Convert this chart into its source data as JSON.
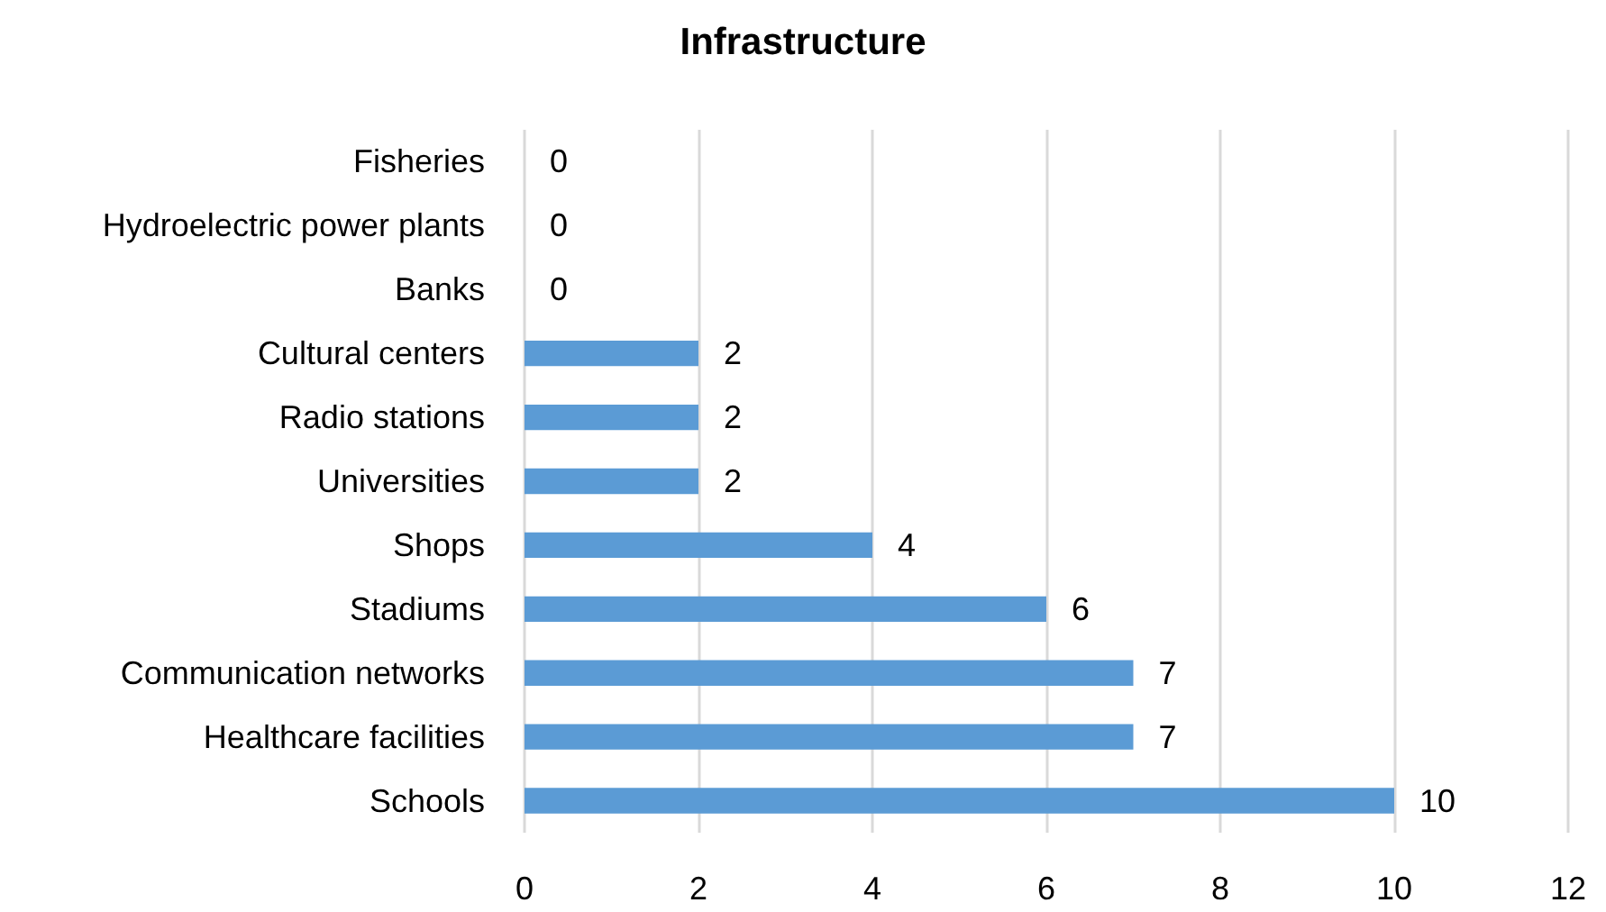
{
  "chart_data": {
    "type": "bar",
    "orientation": "horizontal",
    "title": "Infrastructure",
    "categories": [
      "Fisheries",
      "Hydroelectric power plants",
      "Banks",
      "Cultural centers",
      "Radio stations",
      "Universities",
      "Shops",
      "Stadiums",
      "Communication networks",
      "Healthcare facilities",
      "Schools"
    ],
    "values": [
      0,
      0,
      0,
      2,
      2,
      2,
      4,
      6,
      7,
      7,
      10
    ],
    "color": "#5b9bd5",
    "xlim": [
      0,
      12
    ],
    "xticks": [
      0,
      2,
      4,
      6,
      8,
      10,
      12
    ],
    "grid": "x",
    "data_labels": true
  }
}
